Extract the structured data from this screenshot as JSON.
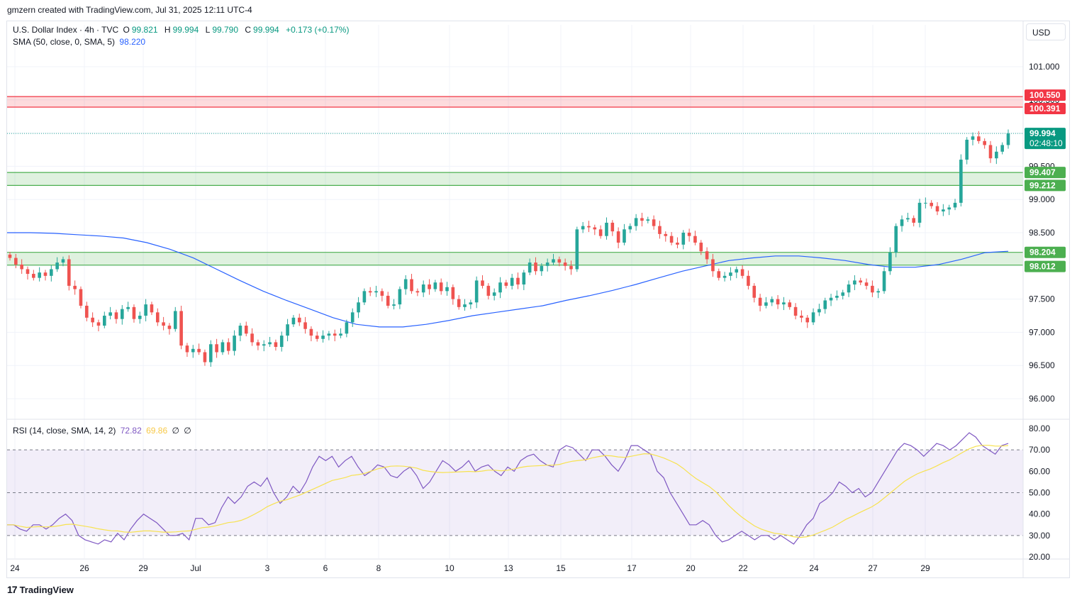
{
  "header": {
    "credit": "gmzern created with TradingView.com, Jul 31, 2025 12:11 UTC-4"
  },
  "legend": {
    "symbol": "U.S. Dollar Index · 4h · TVC",
    "open_label": "O",
    "open": "99.821",
    "high_label": "H",
    "high": "99.994",
    "low_label": "L",
    "low": "99.790",
    "close_label": "C",
    "close": "99.994",
    "change": "+0.173 (+0.17%)",
    "sma_label": "SMA (50, close, 0, SMA, 5)",
    "sma_value": "98.220",
    "rsi_label": "RSI (14, close, SMA, 14, 2)",
    "rsi_value": "72.82",
    "rsi_sma_value": "69.86",
    "rsi_extra1": "∅",
    "rsi_extra2": "∅"
  },
  "currency": "USD",
  "colors": {
    "up": "#26a69a",
    "down": "#ef5350",
    "sma": "#2962ff",
    "rsi": "#7e57c2",
    "rsi_sma": "#f7e24f",
    "resistance": "#f23645",
    "support": "#4caf50"
  },
  "footer": {
    "brand": "TradingView",
    "logo": "17"
  },
  "chart_data": {
    "type": "candlestick",
    "price_axis": {
      "ticks": [
        "101.000",
        "100.500",
        "100.000",
        "99.500",
        "99.000",
        "98.500",
        "98.000",
        "97.500",
        "97.000",
        "96.500",
        "96.000"
      ],
      "ylim": [
        95.8,
        101.4
      ]
    },
    "time_axis": {
      "ticks": [
        "24",
        "26",
        "29",
        "Jul",
        "3",
        "6",
        "8",
        "10",
        "13",
        "15",
        "17",
        "20",
        "22",
        "24",
        "27",
        "29"
      ]
    },
    "price_labels": [
      {
        "value": "100.550",
        "kind": "resistance"
      },
      {
        "value": "100.391",
        "kind": "resistance"
      },
      {
        "value": "99.994",
        "kind": "last",
        "countdown": "02:48:10"
      },
      {
        "value": "99.407",
        "kind": "support"
      },
      {
        "value": "99.212",
        "kind": "support"
      },
      {
        "value": "98.204",
        "kind": "support"
      },
      {
        "value": "98.012",
        "kind": "support"
      }
    ],
    "zones": [
      {
        "from": 100.391,
        "to": 100.55,
        "kind": "resistance"
      },
      {
        "from": 99.212,
        "to": 99.407,
        "kind": "support"
      },
      {
        "from": 98.012,
        "to": 98.204,
        "kind": "support"
      }
    ],
    "last_price": 99.994,
    "closes": [
      98.12,
      98.02,
      97.95,
      97.88,
      97.82,
      97.9,
      97.85,
      97.95,
      98.05,
      98.1,
      97.7,
      97.65,
      97.4,
      97.22,
      97.15,
      97.1,
      97.25,
      97.3,
      97.2,
      97.35,
      97.38,
      97.2,
      97.25,
      97.42,
      97.3,
      97.15,
      97.1,
      97.05,
      97.32,
      96.8,
      96.7,
      96.75,
      96.7,
      96.55,
      96.82,
      96.7,
      96.85,
      96.72,
      96.95,
      97.1,
      96.98,
      96.85,
      96.8,
      96.82,
      96.85,
      96.78,
      96.95,
      97.12,
      97.22,
      97.15,
      97.05,
      96.95,
      96.9,
      96.95,
      96.98,
      96.95,
      96.98,
      97.15,
      97.3,
      97.45,
      97.62,
      97.6,
      97.62,
      97.55,
      97.4,
      97.42,
      97.65,
      97.8,
      97.62,
      97.6,
      97.72,
      97.65,
      97.75,
      97.62,
      97.68,
      97.5,
      97.38,
      97.42,
      97.45,
      97.78,
      97.7,
      97.55,
      97.6,
      97.75,
      97.7,
      97.82,
      97.72,
      97.9,
      98.05,
      97.92,
      98.0,
      98.05,
      98.1,
      98.05,
      98.0,
      97.95,
      98.55,
      98.6,
      98.58,
      98.55,
      98.45,
      98.65,
      98.52,
      98.35,
      98.55,
      98.6,
      98.72,
      98.68,
      98.7,
      98.6,
      98.48,
      98.45,
      98.35,
      98.32,
      98.5,
      98.45,
      98.35,
      98.22,
      98.1,
      97.92,
      97.82,
      97.85,
      97.9,
      97.95,
      97.85,
      97.7,
      97.52,
      97.4,
      97.45,
      97.5,
      97.42,
      97.45,
      97.38,
      97.25,
      97.22,
      97.15,
      97.3,
      97.35,
      97.48,
      97.52,
      97.55,
      97.6,
      97.72,
      97.78,
      97.75,
      97.7,
      97.6,
      97.62,
      97.92,
      98.2,
      98.6,
      98.7,
      98.72,
      98.65,
      98.95,
      98.95,
      98.9,
      98.82,
      98.85,
      98.88,
      98.95,
      99.6,
      99.9,
      99.95,
      99.88,
      99.82,
      99.62,
      99.72,
      99.82,
      99.994
    ],
    "sma": [
      98.5,
      98.5,
      98.49,
      98.47,
      98.45,
      98.42,
      98.35,
      98.25,
      98.12,
      97.95,
      97.78,
      97.62,
      97.48,
      97.35,
      97.22,
      97.12,
      97.08,
      97.08,
      97.12,
      97.18,
      97.25,
      97.3,
      97.35,
      97.4,
      97.48,
      97.55,
      97.63,
      97.72,
      97.82,
      97.92,
      98.0,
      98.08,
      98.12,
      98.15,
      98.15,
      98.12,
      98.08,
      98.02,
      97.98,
      97.98,
      98.02,
      98.1,
      98.2,
      98.22
    ],
    "rsi": [
      35,
      35,
      33,
      32,
      35,
      35,
      33,
      35,
      38,
      40,
      37,
      30,
      28,
      27,
      26,
      28,
      27,
      31,
      28,
      33,
      37,
      40,
      38,
      36,
      33,
      30,
      30,
      31,
      28,
      38,
      38,
      35,
      36,
      43,
      48,
      45,
      48,
      53,
      55,
      53,
      57,
      50,
      45,
      48,
      53,
      50,
      55,
      62,
      67,
      65,
      67,
      62,
      65,
      67,
      62,
      58,
      60,
      63,
      62,
      58,
      57,
      60,
      62,
      58,
      52,
      55,
      60,
      65,
      63,
      60,
      62,
      65,
      60,
      62,
      63,
      60,
      58,
      62,
      60,
      65,
      67,
      68,
      65,
      63,
      62,
      70,
      72,
      71,
      68,
      65,
      70,
      70,
      67,
      63,
      60,
      65,
      72,
      72,
      70,
      68,
      60,
      57,
      50,
      45,
      40,
      35,
      35,
      37,
      35,
      30,
      27,
      28,
      30,
      32,
      30,
      28,
      30,
      30,
      28,
      30,
      28,
      26,
      30,
      35,
      38,
      45,
      47,
      50,
      55,
      53,
      50,
      52,
      48,
      50,
      55,
      60,
      65,
      70,
      73,
      72,
      70,
      67,
      70,
      73,
      72,
      70,
      72,
      75,
      78,
      76,
      72,
      70,
      68,
      72,
      73
    ]
  }
}
